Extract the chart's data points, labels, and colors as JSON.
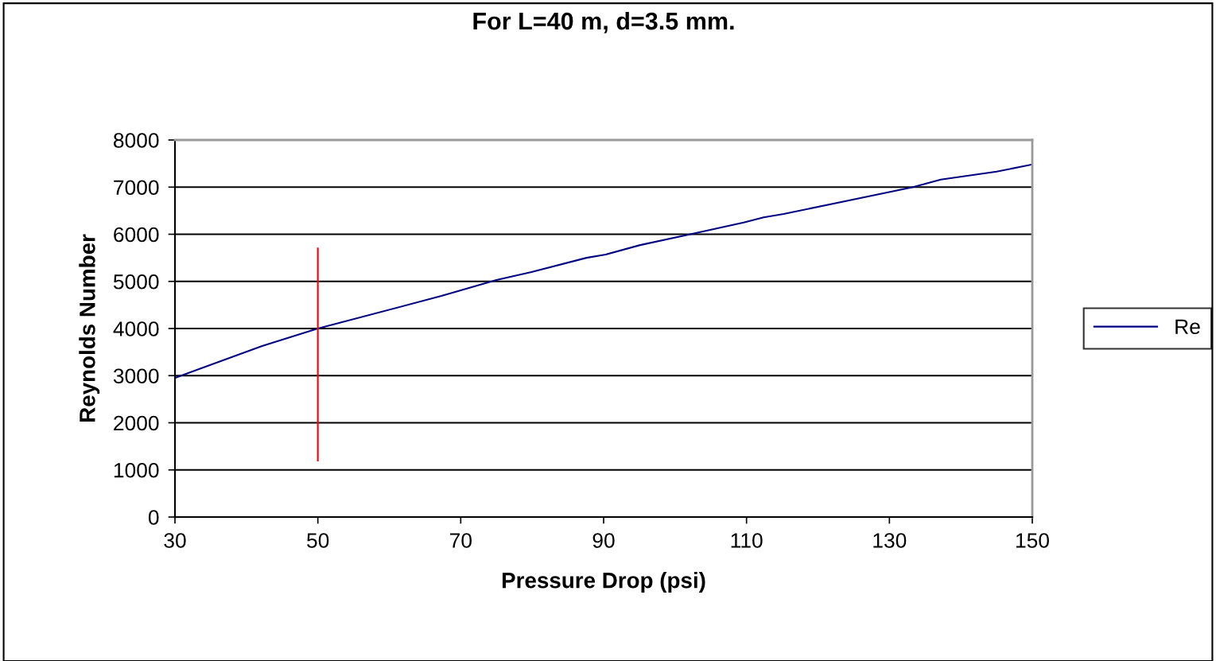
{
  "chart_data": {
    "type": "line",
    "title": "For L=40 m, d=3.5 mm.",
    "xlabel": "Pressure Drop (psi)",
    "ylabel": "Reynolds Number",
    "xlim": [
      30,
      150
    ],
    "xticks": [
      30,
      50,
      70,
      90,
      110,
      130,
      150
    ],
    "ylim": [
      0,
      8000
    ],
    "yticks": [
      0,
      1000,
      2000,
      3000,
      4000,
      5000,
      6000,
      7000,
      8000
    ],
    "grid": "y",
    "legend": "right",
    "marker": "none",
    "line_style": "solid",
    "series": [
      {
        "name": "Re",
        "color": "#000080",
        "x": [
          30,
          42.2,
          50,
          67.3,
          70,
          75,
          79.9,
          87.6,
          90.3,
          95.1,
          101.5,
          109.6,
          112.4,
          115.2,
          133.3,
          137.2,
          145,
          150
        ],
        "values": [
          2950,
          3630,
          4000,
          4690,
          4810,
          5030,
          5200,
          5500,
          5570,
          5770,
          5980,
          6250,
          6360,
          6430,
          7000,
          7160,
          7330,
          7480
        ]
      },
      {
        "color": "#ff0000",
        "x": [
          50,
          50
        ],
        "values": [
          1200,
          5700
        ]
      }
    ]
  }
}
